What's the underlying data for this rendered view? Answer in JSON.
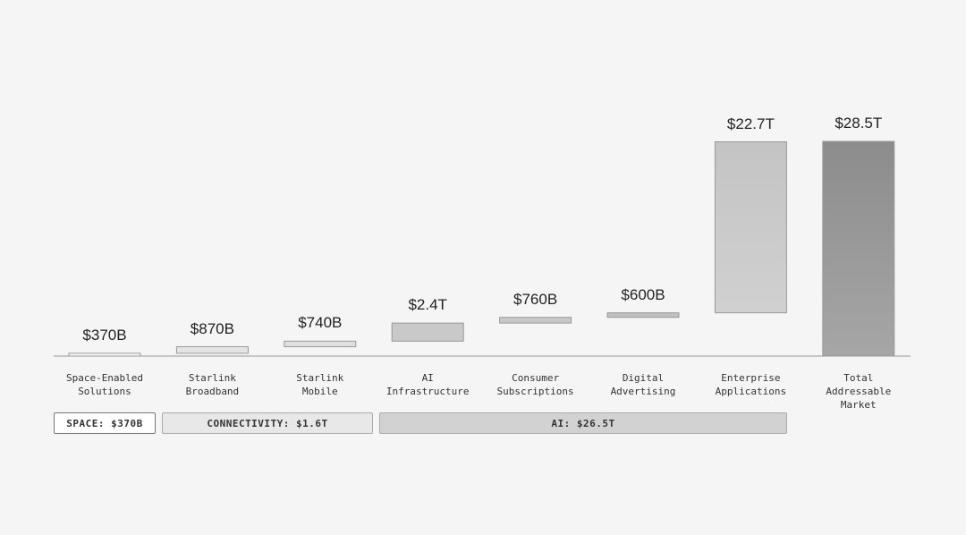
{
  "chart_data": {
    "type": "waterfall",
    "categories": [
      "Space-Enabled Solutions",
      "Starlink Broadband",
      "Starlink Mobile",
      "AI Infrastructure",
      "Consumer Subscriptions",
      "Digital Advertising",
      "Enterprise Applications",
      "Total Addressable Market"
    ],
    "values": [
      370,
      870,
      740,
      2400,
      760,
      600,
      22700,
      28500
    ],
    "value_labels": [
      "$370B",
      "$870B",
      "$740B",
      "$2.4T",
      "$760B",
      "$600B",
      "$22.7T",
      "$28.5T"
    ],
    "kinds": [
      "increase",
      "increase",
      "increase",
      "increase",
      "increase",
      "increase",
      "increase",
      "total"
    ],
    "colors": [
      "#f7f7f7",
      "#e4e4e4",
      "#e0e0e0",
      "#c9c9c9",
      "#c8c8c8",
      "#c0c0c0",
      "#c4c4c4",
      "#8c8c8c"
    ],
    "groups": [
      "SPACE: $370B",
      "CONNECTIVITY: $1.6T",
      "AI: $26.5T"
    ]
  }
}
